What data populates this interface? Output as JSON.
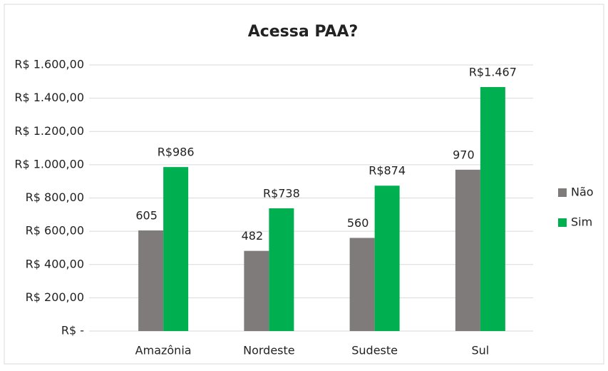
{
  "chart_data": {
    "type": "bar",
    "title": "Acessa PAA?",
    "categories": [
      "Amazônia",
      "Nordeste",
      "Sudeste",
      "Sul"
    ],
    "series": [
      {
        "name": "Não",
        "color": "#7f7b7a",
        "values": [
          605,
          482,
          560,
          970
        ]
      },
      {
        "name": "Sim",
        "color": "#00b050",
        "values": [
          986,
          738,
          874,
          1467
        ],
        "value_labels": [
          "R$986",
          "R$738",
          "R$874",
          "R$1.467"
        ]
      }
    ],
    "ylim": [
      0,
      1600
    ],
    "yticks": [
      {
        "value": 0,
        "label": "R$ -"
      },
      {
        "value": 200,
        "label": "R$ 200,00"
      },
      {
        "value": 400,
        "label": "R$ 400,00"
      },
      {
        "value": 600,
        "label": "R$ 600,00"
      },
      {
        "value": 800,
        "label": "R$ 800,00"
      },
      {
        "value": 1000,
        "label": "R$ 1.000,00"
      },
      {
        "value": 1200,
        "label": "R$ 1.200,00"
      },
      {
        "value": 1400,
        "label": "R$ 1.400,00"
      },
      {
        "value": 1600,
        "label": "R$ 1.600,00"
      }
    ],
    "grid": true,
    "legend": "right"
  }
}
